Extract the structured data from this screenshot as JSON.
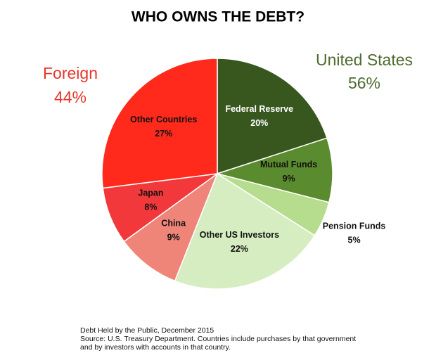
{
  "chart_data": {
    "type": "pie",
    "title": "WHO OWNS THE DEBT?",
    "categories": [
      "Federal Reserve",
      "Mutual Funds",
      "Pension Funds",
      "Other US Investors",
      "China",
      "Japan",
      "Other Countries"
    ],
    "values": [
      20,
      9,
      5,
      22,
      9,
      8,
      27
    ],
    "value_labels": [
      "20%",
      "9%",
      "5%",
      "22%",
      "9%",
      "8%",
      "27%"
    ],
    "colors": [
      "#38571f",
      "#5b8b2f",
      "#b6dd8e",
      "#d6edc2",
      "#ef8478",
      "#f2383a",
      "#ff2a1c"
    ],
    "groups": [
      {
        "name": "Foreign",
        "value": 44,
        "value_label": "44%",
        "color": "#e8352b"
      },
      {
        "name": "United States",
        "value": 56,
        "value_label": "56%",
        "color": "#4e6b2e"
      }
    ],
    "notes": [
      "Debt Held by the Public, December 2015",
      "Source: U.S. Treasury Department. Countries include purchases by that government",
      "and by investors with accounts in that country."
    ]
  }
}
